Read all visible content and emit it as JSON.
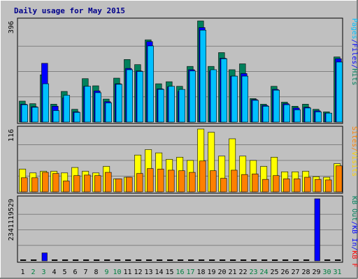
{
  "chart_data": [
    {
      "type": "bar",
      "panel": "hits-files-pages",
      "title": "Daily usage for May 2015",
      "categories": [
        "1",
        "2",
        "3",
        "4",
        "5",
        "6",
        "7",
        "8",
        "9",
        "10",
        "11",
        "12",
        "13",
        "14",
        "15",
        "16",
        "17",
        "18",
        "19",
        "20",
        "21",
        "22",
        "23",
        "24",
        "25",
        "26",
        "27",
        "28",
        "29",
        "30",
        "31"
      ],
      "category_colors": {
        "weekday": "#000000",
        "weekend": "#008040"
      },
      "weekend_days": [
        "2",
        "3",
        "9",
        "10",
        "16",
        "17",
        "23",
        "24",
        "30",
        "31"
      ],
      "ylabel_max": "396",
      "ylim": [
        0,
        396
      ],
      "ylabel_parts": [
        {
          "text": "Hits",
          "color": "#00805c"
        },
        {
          "text": "/",
          "color": "#0000ff"
        },
        {
          "text": "Files",
          "color": "#0000ff"
        },
        {
          "text": "/",
          "color": "#0000ff"
        },
        {
          "text": "Pages",
          "color": "#00c0ff"
        }
      ],
      "series": [
        {
          "name": "Hits",
          "color": "#00805c",
          "values": [
            82,
            72,
            185,
            70,
            120,
            50,
            170,
            142,
            90,
            172,
            245,
            225,
            322,
            150,
            158,
            140,
            218,
            396,
            218,
            272,
            205,
            228,
            92,
            70,
            140,
            78,
            62,
            70,
            50,
            40,
            255
          ]
        },
        {
          "name": "Files",
          "color": "#0000ff",
          "values": [
            70,
            60,
            230,
            62,
            95,
            40,
            140,
            122,
            80,
            150,
            210,
            200,
            315,
            130,
            138,
            120,
            205,
            370,
            200,
            250,
            180,
            190,
            88,
            65,
            128,
            72,
            55,
            58,
            44,
            35,
            248
          ]
        },
        {
          "name": "Pages",
          "color": "#00c0ff",
          "values": [
            68,
            58,
            150,
            45,
            105,
            38,
            140,
            115,
            75,
            148,
            205,
            198,
            298,
            128,
            140,
            128,
            200,
            360,
            205,
            248,
            180,
            180,
            85,
            62,
            125,
            68,
            48,
            55,
            40,
            35,
            235
          ]
        }
      ]
    },
    {
      "type": "bar",
      "panel": "visits-sites",
      "categories": [
        "1",
        "2",
        "3",
        "4",
        "5",
        "6",
        "7",
        "8",
        "9",
        "10",
        "11",
        "12",
        "13",
        "14",
        "15",
        "16",
        "17",
        "18",
        "19",
        "20",
        "21",
        "22",
        "23",
        "24",
        "25",
        "26",
        "27",
        "28",
        "29",
        "30",
        "31"
      ],
      "ylabel_max": "116",
      "ylim": [
        0,
        116
      ],
      "ylabel_parts": [
        {
          "text": "Visits",
          "color": "#ffd000"
        },
        {
          "text": "/",
          "color": "#ff8000"
        },
        {
          "text": "Sites",
          "color": "#ff8000"
        }
      ],
      "series": [
        {
          "name": "Visits",
          "color": "#ffff00",
          "values": [
            42,
            35,
            38,
            38,
            35,
            45,
            38,
            35,
            47,
            24,
            27,
            68,
            78,
            72,
            60,
            64,
            58,
            116,
            110,
            66,
            98,
            66,
            58,
            47,
            64,
            37,
            37,
            38,
            28,
            27,
            52
          ]
        },
        {
          "name": "Sites",
          "color": "#ff8000",
          "values": [
            26,
            26,
            36,
            34,
            20,
            30,
            31,
            30,
            36,
            24,
            27,
            34,
            43,
            42,
            40,
            39,
            36,
            57,
            39,
            25,
            40,
            32,
            33,
            23,
            30,
            24,
            24,
            27,
            23,
            22,
            48
          ]
        }
      ]
    },
    {
      "type": "bar",
      "panel": "kbytes",
      "categories": [
        "1",
        "2",
        "3",
        "4",
        "5",
        "6",
        "7",
        "8",
        "9",
        "10",
        "11",
        "12",
        "13",
        "14",
        "15",
        "16",
        "17",
        "18",
        "19",
        "20",
        "21",
        "22",
        "23",
        "24",
        "25",
        "26",
        "27",
        "28",
        "29",
        "30",
        "31"
      ],
      "ylabel_max": "2341119529",
      "ylim": [
        0,
        2341119529
      ],
      "ylabel_parts": [
        {
          "text": "KB F",
          "color": "#ff0000"
        },
        {
          "text": "/",
          "color": "#0000ff"
        },
        {
          "text": "KB In",
          "color": "#0000ff"
        },
        {
          "text": "/",
          "color": "#0000ff"
        },
        {
          "text": "KB Out",
          "color": "#00805c"
        }
      ],
      "series": [
        {
          "name": "KB In",
          "color": "#0000ff",
          "values": [
            60000000,
            60000000,
            300000000,
            60000000,
            60000000,
            60000000,
            60000000,
            60000000,
            60000000,
            60000000,
            60000000,
            60000000,
            60000000,
            60000000,
            60000000,
            60000000,
            60000000,
            60000000,
            60000000,
            60000000,
            60000000,
            60000000,
            60000000,
            60000000,
            60000000,
            60000000,
            60000000,
            60000000,
            2341119529,
            60000000,
            60000000
          ]
        }
      ]
    }
  ]
}
